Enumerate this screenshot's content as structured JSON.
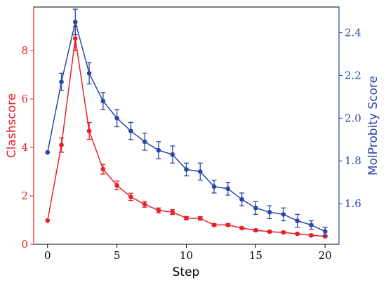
{
  "chart_data": {
    "type": "line",
    "xlabel": "Step",
    "ylabel_left": "Clashscore",
    "ylabel_right": "MolProbity Score",
    "xlim": [
      -1,
      21
    ],
    "ylim_left": [
      0,
      9.8
    ],
    "ylim_right": [
      1.41,
      2.52
    ],
    "x_ticks": [
      0,
      5,
      10,
      15,
      20
    ],
    "y_ticks_left": [
      0,
      2,
      4,
      6,
      8
    ],
    "y_ticks_right": [
      1.6,
      1.8,
      2.0,
      2.2,
      2.4
    ],
    "colors": {
      "left": "#e5222b",
      "right": "#2a47a8"
    },
    "series": [
      {
        "name": "Clashscore",
        "axis": "left",
        "x": [
          0,
          1,
          2,
          3,
          4,
          5,
          6,
          7,
          8,
          9,
          10,
          11,
          12,
          13,
          14,
          15,
          16,
          17,
          18,
          19,
          20
        ],
        "y": [
          0.98,
          4.1,
          8.5,
          4.68,
          3.1,
          2.43,
          1.96,
          1.65,
          1.4,
          1.33,
          1.08,
          1.07,
          0.8,
          0.8,
          0.67,
          0.58,
          0.52,
          0.49,
          0.43,
          0.37,
          0.33
        ],
        "err": [
          0,
          0.3,
          0.5,
          0.35,
          0.2,
          0.18,
          0.15,
          0.12,
          0.1,
          0.1,
          0.07,
          0.07,
          0.05,
          0.05,
          0.04,
          0.04,
          0.04,
          0.04,
          0.03,
          0.03,
          0.03
        ]
      },
      {
        "name": "MolProbity Score",
        "axis": "right",
        "x": [
          0,
          1,
          2,
          3,
          4,
          5,
          6,
          7,
          8,
          9,
          10,
          11,
          12,
          13,
          14,
          15,
          16,
          17,
          18,
          19,
          20
        ],
        "y": [
          1.84,
          2.17,
          2.45,
          2.21,
          2.08,
          2.0,
          1.94,
          1.89,
          1.85,
          1.83,
          1.76,
          1.75,
          1.68,
          1.67,
          1.62,
          1.58,
          1.56,
          1.55,
          1.52,
          1.5,
          1.47
        ],
        "err": [
          0,
          0.04,
          0.06,
          0.05,
          0.04,
          0.04,
          0.04,
          0.04,
          0.04,
          0.04,
          0.03,
          0.04,
          0.03,
          0.03,
          0.03,
          0.03,
          0.03,
          0.03,
          0.03,
          0.02,
          0.02
        ]
      }
    ]
  }
}
